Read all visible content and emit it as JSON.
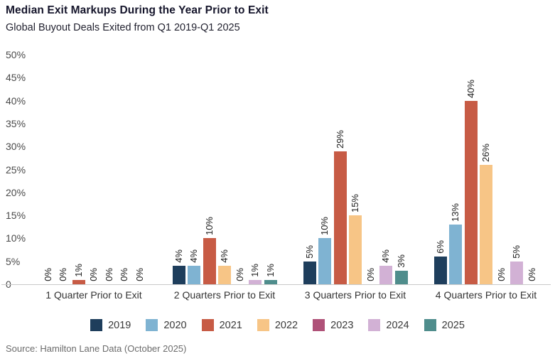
{
  "header": {
    "title": "Median Exit Markups During the Year Prior to Exit",
    "subtitle": "Global Buyout Deals Exited from Q1 2019-Q1 2025"
  },
  "chart_data": {
    "type": "bar",
    "grouped": true,
    "title": "Median Exit Markups During the Year Prior to Exit",
    "subtitle": "Global Buyout Deals Exited from Q1 2019-Q1 2025",
    "categories": [
      "1 Quarter Prior to Exit",
      "2 Quarters Prior to Exit",
      "3 Quarters Prior to Exit",
      "4 Quarters Prior to Exit"
    ],
    "series": [
      {
        "name": "2019",
        "color": "#1e3e5c",
        "values": [
          0,
          4,
          5,
          6
        ]
      },
      {
        "name": "2020",
        "color": "#7fb3d2",
        "values": [
          0,
          4,
          10,
          13
        ]
      },
      {
        "name": "2021",
        "color": "#c75b45",
        "values": [
          1,
          10,
          29,
          40
        ]
      },
      {
        "name": "2022",
        "color": "#f7c586",
        "values": [
          0,
          4,
          15,
          26
        ]
      },
      {
        "name": "2023",
        "color": "#af5178",
        "values": [
          0,
          0,
          0,
          0
        ]
      },
      {
        "name": "2024",
        "color": "#d2b1d5",
        "values": [
          0,
          1,
          4,
          5
        ]
      },
      {
        "name": "2025",
        "color": "#4f8d8c",
        "values": [
          0,
          1,
          3,
          0
        ]
      }
    ],
    "value_label_suffix": "%",
    "y_ticks": [
      "50%",
      "45%",
      "40%",
      "35%",
      "30%",
      "25%",
      "20%",
      "15%",
      "10%",
      "5%",
      "0"
    ],
    "ylim": [
      0,
      50
    ],
    "grid": false,
    "legend_position": "bottom",
    "xlabel": "",
    "ylabel": ""
  },
  "footer": {
    "source": "Source: Hamilton Lane Data (October 2025)"
  }
}
